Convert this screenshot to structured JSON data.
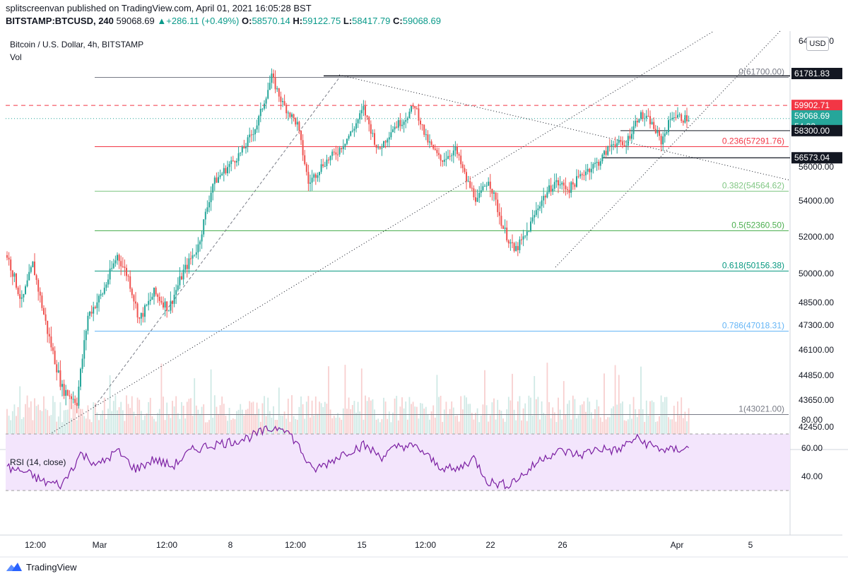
{
  "header": {
    "line1": "splitscreenvan published on TradingView.com, April 01, 2021 16:05:28 BST",
    "symbol": "BITSTAMP:BTCUSD, 240",
    "last": "59068.69",
    "change": "+286.11 (+0.49%)",
    "o_label": "O:",
    "o": "58570.14",
    "h_label": "H:",
    "h": "59122.75",
    "l_label": "L:",
    "l": "58417.79",
    "c_label": "C:",
    "c": "59068.69"
  },
  "pane": {
    "title": "Bitcoin / U.S. Dollar, 4h, BITSTAMP",
    "vol_label": "Vol",
    "currency_button": "USD"
  },
  "rsi": {
    "label": "RSI (14, close)",
    "ticks": [
      "80.00",
      "60.00",
      "40.00"
    ],
    "upper": 70,
    "lower": 30
  },
  "brand": "TradingView",
  "colors": {
    "up": "#26a69a",
    "down": "#ef5350",
    "rsi_line": "#7b1fa2",
    "rsi_band": "#f3e5fc"
  },
  "chart_data": {
    "type": "candlestick",
    "symbol": "BTCUSD",
    "interval": "4h",
    "price_ticks": [
      "64000.00",
      "56000.00",
      "54000.00",
      "52000.00",
      "50000.00",
      "48500.00",
      "47300.00",
      "46100.00",
      "44850.00",
      "43650.00",
      "42450.00"
    ],
    "x_ticks": [
      "12:00",
      "Mar",
      "12:00",
      "8",
      "12:00",
      "15",
      "12:00",
      "22",
      "26",
      "Apr",
      "5"
    ],
    "price_labels": [
      {
        "text": "61781.83",
        "value": 61781.83,
        "style": "dark"
      },
      {
        "text": "59902.71",
        "value": 59902.71,
        "style": "red"
      },
      {
        "text": "59068.69",
        "value": 59068.69,
        "style": "teal"
      },
      {
        "text": "54:33",
        "value": 58500,
        "style": "teal-sub"
      },
      {
        "text": "58300.00",
        "value": 58300,
        "style": "dark"
      },
      {
        "text": "56573.04",
        "value": 56573.04,
        "style": "dark"
      }
    ],
    "fib_levels": [
      {
        "label": "0(61700.00)",
        "value": 61700,
        "color": "#787b86"
      },
      {
        "label": "0.236(57291.76)",
        "value": 57291.76,
        "color": "#f23645"
      },
      {
        "label": "0.382(54564.62)",
        "value": 54564.62,
        "color": "#81c784"
      },
      {
        "label": "0.5(52360.50)",
        "value": 52360.5,
        "color": "#4caf50"
      },
      {
        "label": "0.618(50156.38)",
        "value": 50156.38,
        "color": "#089981"
      },
      {
        "label": "0.786(47018.31)",
        "value": 47018.31,
        "color": "#64b5f6"
      },
      {
        "label": "1(43021.00)",
        "value": 43021,
        "color": "#787b86"
      }
    ],
    "ohlc_trajectory": [
      [
        0,
        51000
      ],
      [
        8,
        48500
      ],
      [
        14,
        50500
      ],
      [
        22,
        47000
      ],
      [
        30,
        44200
      ],
      [
        38,
        43600
      ],
      [
        44,
        47800
      ],
      [
        52,
        49000
      ],
      [
        60,
        51000
      ],
      [
        66,
        49800
      ],
      [
        72,
        47600
      ],
      [
        80,
        49000
      ],
      [
        88,
        48200
      ],
      [
        96,
        50100
      ],
      [
        104,
        51500
      ],
      [
        112,
        55000
      ],
      [
        120,
        56000
      ],
      [
        128,
        57000
      ],
      [
        136,
        58700
      ],
      [
        144,
        61700
      ],
      [
        150,
        60000
      ],
      [
        158,
        58700
      ],
      [
        164,
        55000
      ],
      [
        172,
        56200
      ],
      [
        180,
        57000
      ],
      [
        188,
        58300
      ],
      [
        194,
        59700
      ],
      [
        202,
        57000
      ],
      [
        210,
        58500
      ],
      [
        216,
        59000
      ],
      [
        222,
        59900
      ],
      [
        228,
        57800
      ],
      [
        236,
        56400
      ],
      [
        244,
        57100
      ],
      [
        250,
        55200
      ],
      [
        256,
        54000
      ],
      [
        262,
        55300
      ],
      [
        270,
        52500
      ],
      [
        276,
        51200
      ],
      [
        282,
        52000
      ],
      [
        290,
        53900
      ],
      [
        298,
        55100
      ],
      [
        306,
        54700
      ],
      [
        314,
        55700
      ],
      [
        322,
        56300
      ],
      [
        330,
        57600
      ],
      [
        336,
        57300
      ],
      [
        344,
        59300
      ],
      [
        350,
        58900
      ],
      [
        356,
        57600
      ],
      [
        362,
        59300
      ],
      [
        368,
        59069
      ]
    ],
    "rsi_trajectory": [
      [
        0,
        46
      ],
      [
        10,
        43
      ],
      [
        20,
        36
      ],
      [
        30,
        34
      ],
      [
        40,
        56
      ],
      [
        50,
        48
      ],
      [
        60,
        58
      ],
      [
        70,
        45
      ],
      [
        80,
        52
      ],
      [
        90,
        47
      ],
      [
        100,
        58
      ],
      [
        110,
        62
      ],
      [
        120,
        64
      ],
      [
        130,
        67
      ],
      [
        140,
        72
      ],
      [
        150,
        76
      ],
      [
        158,
        63
      ],
      [
        166,
        44
      ],
      [
        174,
        49
      ],
      [
        184,
        57
      ],
      [
        194,
        62
      ],
      [
        204,
        54
      ],
      [
        214,
        62
      ],
      [
        224,
        60
      ],
      [
        234,
        48
      ],
      [
        244,
        44
      ],
      [
        254,
        53
      ],
      [
        262,
        36
      ],
      [
        272,
        34
      ],
      [
        282,
        42
      ],
      [
        292,
        54
      ],
      [
        302,
        58
      ],
      [
        312,
        55
      ],
      [
        322,
        60
      ],
      [
        332,
        58
      ],
      [
        342,
        67
      ],
      [
        352,
        61
      ],
      [
        360,
        58
      ],
      [
        368,
        60
      ]
    ]
  }
}
